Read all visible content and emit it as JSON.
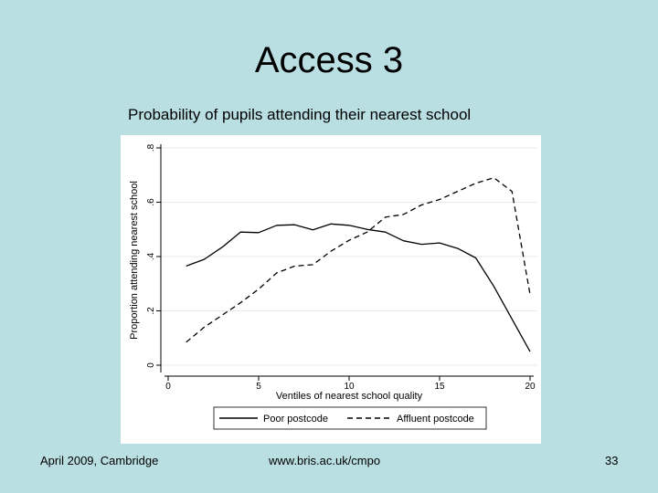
{
  "slide": {
    "title": "Access 3",
    "caption": "Probability of pupils attending their nearest school",
    "footer_left": "April 2009, Cambridge",
    "footer_center": "www.bris.ac.uk/cmpo",
    "page_number": "33"
  },
  "chart_data": {
    "type": "line",
    "title": "",
    "xlabel": "Ventiles of nearest school quality",
    "ylabel": "Proportion attending nearest school",
    "xlim": [
      0,
      20
    ],
    "ylim": [
      0,
      0.8
    ],
    "xticks": [
      0,
      5,
      10,
      15,
      20
    ],
    "yticks": [
      0,
      0.2,
      0.4,
      0.6,
      0.8
    ],
    "xtick_labels": [
      "0",
      "5",
      "10",
      "15",
      "20"
    ],
    "ytick_labels": [
      "0",
      ".2",
      ".4",
      ".6",
      ".8"
    ],
    "grid": true,
    "legend_position": "bottom",
    "x": [
      1,
      2,
      3,
      4,
      5,
      6,
      7,
      8,
      9,
      10,
      11,
      12,
      13,
      14,
      15,
      16,
      17,
      18,
      19,
      20
    ],
    "series": [
      {
        "name": "Poor postcode",
        "style": "solid",
        "color": "#000000",
        "values": [
          0.365,
          0.39,
          0.435,
          0.49,
          0.488,
          0.515,
          0.517,
          0.498,
          0.52,
          0.515,
          0.5,
          0.49,
          0.458,
          0.445,
          0.45,
          0.43,
          0.395,
          0.29,
          0.17,
          0.05
        ]
      },
      {
        "name": "Affluent postcode",
        "style": "dashed",
        "color": "#000000",
        "values": [
          0.085,
          0.14,
          0.185,
          0.23,
          0.28,
          0.34,
          0.365,
          0.37,
          0.42,
          0.46,
          0.49,
          0.545,
          0.555,
          0.59,
          0.61,
          0.64,
          0.67,
          0.69,
          0.64,
          0.26
        ]
      }
    ]
  }
}
